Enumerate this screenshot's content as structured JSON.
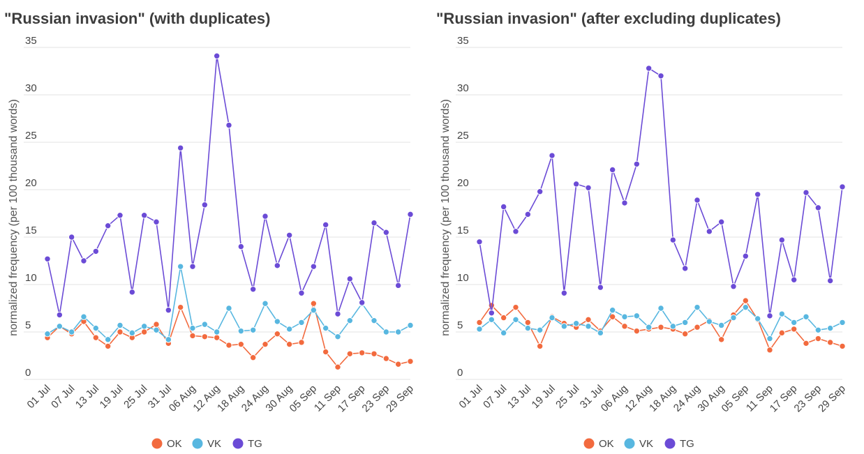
{
  "chart_data": [
    {
      "type": "line",
      "title": "\"Russian invasion\" (with duplicates)",
      "ylabel": "normalized frequency (per 100 thousand words)",
      "ylim": [
        0,
        35
      ],
      "yticks": [
        "0",
        "5",
        "10",
        "15",
        "20",
        "25",
        "30",
        "35"
      ],
      "xtick_labels": [
        "01 Jul",
        "07 Jul",
        "13 Jul",
        "19 Jul",
        "25 Jul",
        "31 Jul",
        "06 Aug",
        "12 Aug",
        "18 Aug",
        "24 Aug",
        "30 Aug",
        "05 Sep",
        "11 Sep",
        "17 Sep",
        "23 Sep",
        "29 Sep"
      ],
      "grid": true,
      "legend": "bottom",
      "series": [
        {
          "name": "OK",
          "color": "#f26a3e",
          "values": [
            4.4,
            5.6,
            4.8,
            6.1,
            4.4,
            3.5,
            5.0,
            4.4,
            5.0,
            5.8,
            3.8,
            7.6,
            4.6,
            4.5,
            4.4,
            3.6,
            3.7,
            2.3,
            3.7,
            4.8,
            3.7,
            3.9,
            8.0,
            2.9,
            1.3,
            2.7,
            2.8,
            2.7,
            2.2,
            1.6,
            1.9
          ]
        },
        {
          "name": "VK",
          "color": "#58b7e0",
          "values": [
            4.8,
            5.6,
            5.0,
            6.6,
            5.4,
            4.2,
            5.7,
            4.9,
            5.6,
            5.2,
            4.2,
            11.9,
            5.4,
            5.8,
            5.0,
            7.5,
            5.1,
            5.2,
            8.0,
            6.1,
            5.3,
            6.0,
            7.3,
            5.4,
            4.5,
            6.2,
            8.0,
            6.2,
            5.0,
            5.0,
            5.7
          ]
        },
        {
          "name": "TG",
          "color": "#6b4bd6",
          "values": [
            12.7,
            6.8,
            15.0,
            12.5,
            13.5,
            16.2,
            17.3,
            9.2,
            17.3,
            16.6,
            7.3,
            24.4,
            11.9,
            18.4,
            34.1,
            26.8,
            14.0,
            9.5,
            17.2,
            12.0,
            15.2,
            9.1,
            11.9,
            16.3,
            6.9,
            10.6,
            8.1,
            16.5,
            15.5,
            9.9,
            17.4
          ]
        }
      ]
    },
    {
      "type": "line",
      "title": "\"Russian invasion\" (after excluding duplicates)",
      "ylabel": "normalized frequency (per 100 thousand words)",
      "ylim": [
        0,
        35
      ],
      "yticks": [
        "0",
        "5",
        "10",
        "15",
        "20",
        "25",
        "30",
        "35"
      ],
      "xtick_labels": [
        "01 Jul",
        "07 Jul",
        "13 Jul",
        "19 Jul",
        "25 Jul",
        "31 Jul",
        "06 Aug",
        "12 Aug",
        "18 Aug",
        "24 Aug",
        "30 Aug",
        "05 Sep",
        "11 Sep",
        "17 Sep",
        "23 Sep",
        "29 Sep"
      ],
      "grid": true,
      "legend": "bottom",
      "series": [
        {
          "name": "OK",
          "color": "#f26a3e",
          "values": [
            6.0,
            7.8,
            6.5,
            7.6,
            6.0,
            3.5,
            6.6,
            5.9,
            5.5,
            6.3,
            5.1,
            6.6,
            5.6,
            5.1,
            5.3,
            5.5,
            5.3,
            4.8,
            5.5,
            6.2,
            4.2,
            6.8,
            8.3,
            6.3,
            3.1,
            4.9,
            5.3,
            3.8,
            4.3,
            3.9,
            3.5
          ]
        },
        {
          "name": "VK",
          "color": "#58b7e0",
          "values": [
            5.3,
            6.3,
            4.9,
            6.3,
            5.4,
            5.2,
            6.5,
            5.6,
            5.9,
            5.6,
            4.9,
            7.3,
            6.6,
            6.7,
            5.5,
            7.5,
            5.6,
            6.0,
            7.6,
            6.1,
            5.7,
            6.5,
            7.6,
            6.4,
            4.3,
            6.9,
            6.0,
            6.6,
            5.2,
            5.4,
            6.0
          ]
        },
        {
          "name": "TG",
          "color": "#6b4bd6",
          "values": [
            14.5,
            7.0,
            18.2,
            15.6,
            17.4,
            19.8,
            23.6,
            9.1,
            20.6,
            20.2,
            9.7,
            22.1,
            18.6,
            22.7,
            32.8,
            32.0,
            14.7,
            11.7,
            18.9,
            15.6,
            16.6,
            9.8,
            13.0,
            19.5,
            6.7,
            14.7,
            10.5,
            19.7,
            18.1,
            10.4,
            20.3
          ]
        }
      ]
    }
  ]
}
